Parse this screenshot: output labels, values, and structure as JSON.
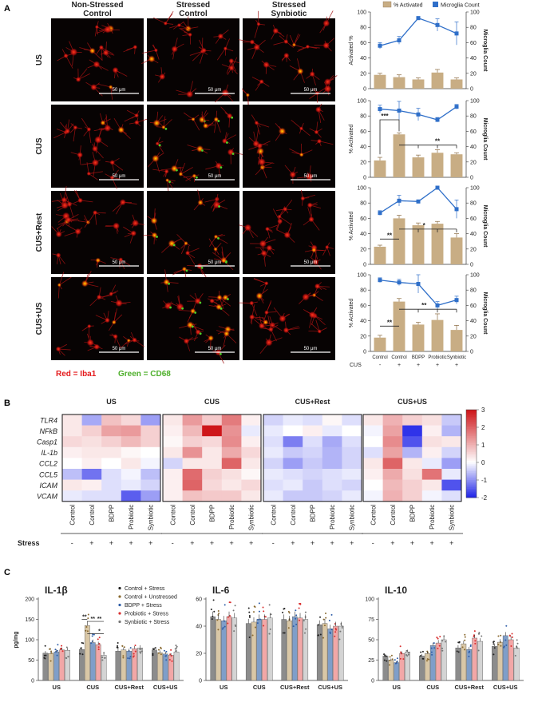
{
  "panelA": {
    "label": "A",
    "col_headers": [
      {
        "line1": "Non-Stressed",
        "line2": "Control"
      },
      {
        "line1": "Stressed",
        "line2": "Control"
      },
      {
        "line1": "Stressed",
        "line2": "Synbiotic"
      }
    ],
    "row_labels": [
      "US",
      "CUS",
      "CUS+Rest",
      "CUS+US"
    ],
    "scalebar": "50 μm",
    "legend_red": "Red = Iba1",
    "legend_green": "Green = CD68",
    "colors": {
      "red": "#e41a1c",
      "green": "#4daf2a",
      "bar": "#c8ad84",
      "line": "#2f6fc9"
    }
  },
  "legend_activated": "% Activated",
  "legend_microglia": "Microglia Count",
  "y_left_label": "Activated %",
  "y_left_label_alt": "% Activated",
  "y_right_label": "Microglia Count",
  "x_categories": [
    "Control",
    "Control",
    "BDPP",
    "Probiotic",
    "Synbiotic"
  ],
  "cus_label": "CUS",
  "cus_signs": [
    "-",
    "+",
    "+",
    "+",
    "+"
  ],
  "panelB": {
    "label": "B",
    "groups": [
      "US",
      "CUS",
      "CUS+Rest",
      "CUS+US"
    ],
    "genes": [
      "TLR4",
      "NFkB",
      "Casp1",
      "IL-1b",
      "CCL2",
      "CCL5",
      "ICAM",
      "VCAM"
    ],
    "columns": [
      "Control",
      "Control",
      "BDPP",
      "Probiotic",
      "Synbiotic"
    ],
    "stress_label": "Stress",
    "stress_signs": [
      "-",
      "+",
      "+",
      "+",
      "+"
    ],
    "colorbar_ticks": [
      "3",
      "2",
      "1",
      "0",
      "-1",
      "-2"
    ]
  },
  "panelC": {
    "label": "C",
    "ylabel": "pg/mg",
    "legend": [
      "Control + Stress",
      "Control + Unstressed",
      "BDPP + Stress",
      "Probiotic + Stress",
      "Synbiotic + Stress"
    ],
    "bar_colors": [
      "#8c8c8c",
      "#d9c7a6",
      "#7f9ec9",
      "#f2a7a7",
      "#d4d4d4"
    ],
    "dot_colors": [
      "#222222",
      "#8a6a30",
      "#2f5ea8",
      "#d93030",
      "#777777"
    ]
  },
  "chart_data": [
    {
      "type": "bar",
      "title": "US",
      "categories": [
        "Control",
        "Control",
        "BDPP",
        "Probiotic",
        "Synbiotic"
      ],
      "series": [
        {
          "name": "% Activated",
          "values": [
            18,
            15,
            12,
            21,
            12
          ],
          "errors": [
            2,
            3,
            2,
            4,
            2
          ]
        },
        {
          "name": "Microglia Count",
          "values": [
            56,
            63,
            92,
            83,
            72
          ],
          "errors": [
            4,
            5,
            2,
            8,
            15
          ]
        }
      ],
      "ylim": [
        0,
        100
      ],
      "y2lim": [
        0,
        100
      ]
    },
    {
      "type": "bar",
      "title": "CUS",
      "categories": [
        "Control",
        "Control",
        "BDPP",
        "Probiotic",
        "Synbiotic"
      ],
      "series": [
        {
          "name": "% Activated",
          "values": [
            22,
            56,
            26,
            32,
            30
          ],
          "errors": [
            4,
            2,
            3,
            4,
            2
          ]
        },
        {
          "name": "Microglia Count",
          "values": [
            89,
            87,
            82,
            75,
            92
          ],
          "errors": [
            5,
            12,
            8,
            3,
            3
          ]
        }
      ],
      "annotations": [
        "***",
        "**"
      ],
      "ylim": [
        0,
        100
      ],
      "y2lim": [
        0,
        100
      ]
    },
    {
      "type": "bar",
      "title": "CUS+Rest",
      "categories": [
        "Control",
        "Control",
        "BDPP",
        "Probiotic",
        "Synbiotic"
      ],
      "series": [
        {
          "name": "% Activated",
          "values": [
            23,
            60,
            51,
            53,
            35
          ],
          "errors": [
            2,
            4,
            3,
            3,
            5
          ]
        },
        {
          "name": "Microglia Count",
          "values": [
            67,
            83,
            82,
            100,
            72
          ],
          "errors": [
            3,
            7,
            2,
            1,
            12
          ]
        }
      ],
      "annotations": [
        "**",
        "*"
      ],
      "ylim": [
        0,
        100
      ],
      "y2lim": [
        0,
        100
      ]
    },
    {
      "type": "bar",
      "title": "CUS+US",
      "categories": [
        "Control",
        "Control",
        "BDPP",
        "Probiotic",
        "Synbiotic"
      ],
      "series": [
        {
          "name": "% Activated",
          "values": [
            18,
            65,
            35,
            41,
            28
          ],
          "errors": [
            3,
            4,
            3,
            8,
            6
          ]
        },
        {
          "name": "Microglia Count",
          "values": [
            93,
            90,
            88,
            60,
            67
          ],
          "errors": [
            3,
            4,
            12,
            5,
            5
          ]
        }
      ],
      "annotations": [
        "**",
        "**"
      ],
      "ylim": [
        0,
        100
      ],
      "y2lim": [
        0,
        100
      ]
    },
    {
      "type": "heatmap",
      "groups": [
        "US",
        "CUS",
        "CUS+Rest",
        "CUS+US"
      ],
      "rows": [
        "TLR4",
        "NFkB",
        "Casp1",
        "IL-1b",
        "CCL2",
        "CCL5",
        "ICAM",
        "VCAM"
      ],
      "columns": [
        "Control",
        "Control",
        "BDPP",
        "Probiotic",
        "Synbiotic"
      ],
      "values": [
        [
          [
            0.3,
            -0.8,
            0.8,
            0.5,
            -0.9
          ],
          [
            0.3,
            0.6,
            1.2,
            1.3,
            0.6
          ],
          [
            0.5,
            0.4,
            0.6,
            0.9,
            0.6
          ],
          [
            0.2,
            0.3,
            0.3,
            0.1,
            0
          ],
          [
            0,
            0.2,
            0,
            0.3,
            -0.1
          ],
          [
            -0.6,
            -1.3,
            -0.3,
            -0.1,
            -0.6
          ],
          [
            0.3,
            0.2,
            -0.3,
            -0.2,
            -0.4
          ],
          [
            -0.2,
            -0.3,
            -0.3,
            -1.5,
            -0.9
          ]
        ],
        [
          [
            0.3,
            1.3,
            0.7,
            1.7,
            0.2
          ],
          [
            0.2,
            0.9,
            3.0,
            1.4,
            -0.2
          ],
          [
            0.1,
            0.6,
            0.5,
            1.5,
            0.2
          ],
          [
            0.3,
            1.4,
            0.3,
            1.1,
            0.5
          ],
          [
            -0.4,
            0.3,
            0.3,
            2.0,
            0.3
          ],
          [
            0.2,
            1.9,
            0.6,
            0.4,
            0.1
          ],
          [
            0.2,
            2.0,
            0.5,
            0.3,
            0.5
          ],
          [
            0.2,
            0.8,
            0.7,
            0.7,
            0.3
          ]
        ],
        [
          [
            -0.4,
            -0.2,
            -0.3,
            0.1,
            -0.3
          ],
          [
            -0.2,
            0,
            0.2,
            -0.2,
            0
          ],
          [
            -0.3,
            -1.2,
            -0.3,
            -0.8,
            -0.3
          ],
          [
            -0.2,
            -0.5,
            -0.4,
            -0.7,
            -0.4
          ],
          [
            -0.4,
            -0.9,
            -0.5,
            -0.7,
            -0.4
          ],
          [
            -0.2,
            -0.3,
            -0.4,
            -0.3,
            -0.2
          ],
          [
            -0.3,
            -0.2,
            -0.5,
            -0.3,
            -0.4
          ],
          [
            -0.2,
            -0.5,
            -0.5,
            -0.4,
            -0.2
          ]
        ],
        [
          [
            0.3,
            1.0,
            0.6,
            0.4,
            -0.5
          ],
          [
            -0.1,
            1.2,
            -1.9,
            0.2,
            -0.7
          ],
          [
            0,
            1.5,
            -1.6,
            0.4,
            0.3
          ],
          [
            -0.3,
            1.2,
            -0.7,
            0.2,
            -0.4
          ],
          [
            0.3,
            2.0,
            0.3,
            -0.2,
            -0.9
          ],
          [
            0.2,
            1.1,
            0.4,
            1.8,
            -0.2
          ],
          [
            0,
            0.9,
            0.6,
            0.3,
            -1.6
          ],
          [
            -0.1,
            1.0,
            0.6,
            -0.1,
            -0.3
          ]
        ]
      ],
      "colorbar_range": [
        -2,
        3
      ]
    },
    {
      "type": "bar",
      "title": "IL-1β",
      "categories": [
        "US",
        "CUS",
        "CUS+Rest",
        "CUS+US"
      ],
      "series": [
        {
          "name": "Control + Stress",
          "values": [
            67,
            76,
            72,
            75
          ]
        },
        {
          "name": "Control + Unstressed",
          "values": [
            66,
            135,
            75,
            68
          ]
        },
        {
          "name": "BDPP + Stress",
          "values": [
            70,
            93,
            72,
            65
          ]
        },
        {
          "name": "Probiotic + Stress",
          "values": [
            75,
            88,
            78,
            62
          ]
        },
        {
          "name": "Synbiotic + Stress",
          "values": [
            74,
            62,
            80,
            70
          ]
        }
      ],
      "ylabel": "pg/mg",
      "ylim": [
        0,
        200
      ],
      "annotations": [
        "**",
        "**",
        "**",
        "*"
      ]
    },
    {
      "type": "bar",
      "title": "IL-6",
      "categories": [
        "US",
        "CUS",
        "CUS+Rest",
        "CUS+US"
      ],
      "series": [
        {
          "name": "Control + Stress",
          "values": [
            47,
            42,
            45,
            41
          ]
        },
        {
          "name": "Control + Unstressed",
          "values": [
            45,
            43,
            44,
            42
          ]
        },
        {
          "name": "BDPP + Stress",
          "values": [
            44,
            45,
            47,
            38
          ]
        },
        {
          "name": "Probiotic + Stress",
          "values": [
            47,
            45,
            46,
            40
          ]
        },
        {
          "name": "Synbiotic + Stress",
          "values": [
            46,
            46,
            45,
            40
          ]
        }
      ],
      "ylim": [
        0,
        60
      ]
    },
    {
      "type": "bar",
      "title": "IL-10",
      "categories": [
        "US",
        "CUS",
        "CUS+Rest",
        "CUS+US"
      ],
      "series": [
        {
          "name": "Control + Stress",
          "values": [
            30,
            30,
            40,
            42
          ]
        },
        {
          "name": "Control + Unstressed",
          "values": [
            25,
            33,
            45,
            47
          ]
        },
        {
          "name": "BDPP + Stress",
          "values": [
            22,
            43,
            38,
            55
          ]
        },
        {
          "name": "Probiotic + Stress",
          "values": [
            33,
            46,
            52,
            50
          ]
        },
        {
          "name": "Synbiotic + Stress",
          "values": [
            35,
            50,
            48,
            40
          ]
        }
      ],
      "ylim": [
        0,
        100
      ]
    }
  ]
}
